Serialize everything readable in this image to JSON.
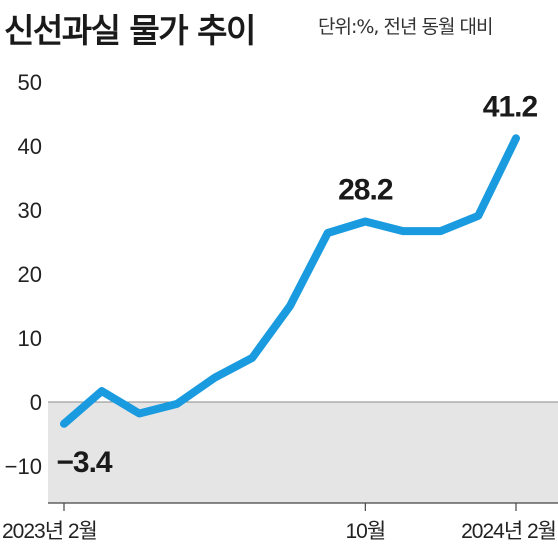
{
  "chart_data": {
    "type": "line",
    "title": "신선과실 물가 추이",
    "unit_note": "단위:%, 전년 동월 대비",
    "x": [
      "2023-02",
      "2023-03",
      "2023-04",
      "2023-05",
      "2023-06",
      "2023-07",
      "2023-08",
      "2023-09",
      "2023-10",
      "2023-11",
      "2023-12",
      "2024-01",
      "2024-02"
    ],
    "series": [
      {
        "values": [
          -3.4,
          1.7,
          -1.8,
          -0.3,
          3.8,
          6.9,
          15.0,
          26.4,
          28.2,
          26.7,
          26.7,
          29.1,
          41.2
        ]
      }
    ],
    "x_tick_labels": [
      {
        "index": 0,
        "label": "2023년 2월"
      },
      {
        "index": 8,
        "label": "10월"
      },
      {
        "index": 12,
        "label": "2024년 2월"
      }
    ],
    "y_ticks": [
      "50",
      "40",
      "30",
      "20",
      "10",
      "0",
      "−10"
    ],
    "y_tick_values": [
      50,
      40,
      30,
      20,
      10,
      0,
      -10
    ],
    "ylim": [
      -15,
      52
    ],
    "negative_band": true,
    "data_labels": [
      {
        "index": 0,
        "label": "−3.4"
      },
      {
        "index": 8,
        "label": "28.2"
      },
      {
        "index": 12,
        "label": "41.2"
      }
    ],
    "line_color": "#1a9be0",
    "band_color": "#e5e5e5"
  }
}
